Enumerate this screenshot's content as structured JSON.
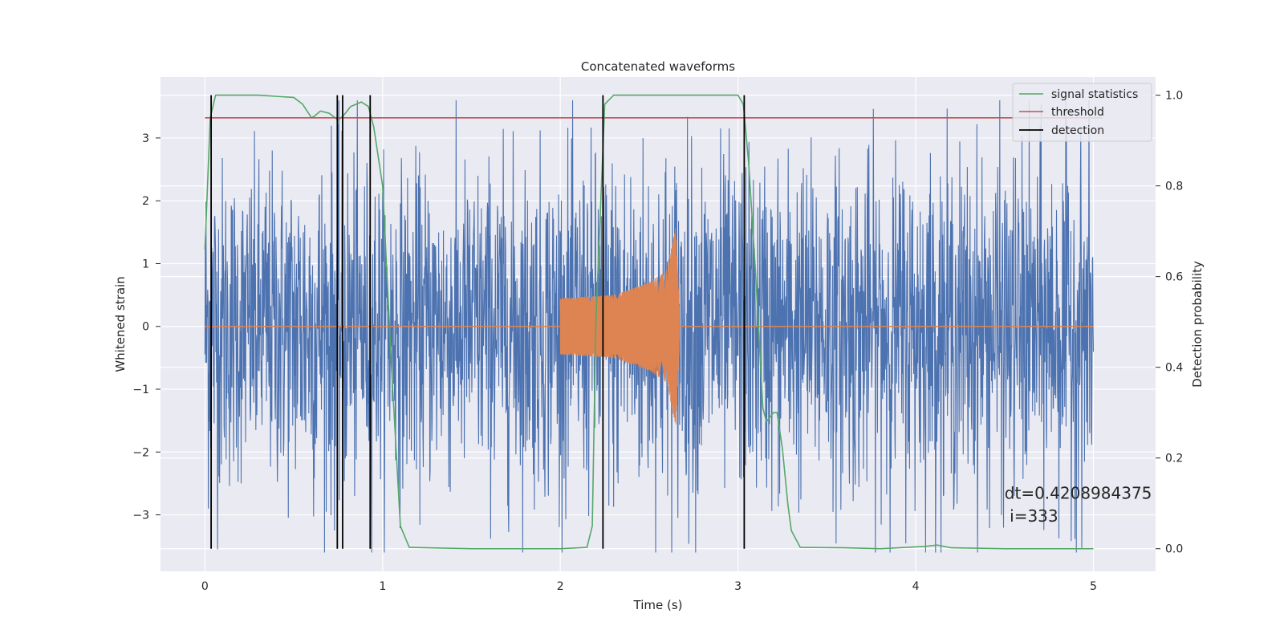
{
  "chart_data": {
    "type": "line",
    "title": "Concatenated waveforms",
    "xlabel": "Time (s)",
    "ylabel": "Whitened strain",
    "y2label": "Detection probability",
    "xlim": [
      -0.25,
      5.35
    ],
    "ylim": [
      -3.9,
      3.97
    ],
    "y2lim": [
      -0.05,
      1.04
    ],
    "xticks": [
      0,
      1,
      2,
      3,
      4,
      5
    ],
    "yticks": [
      -3,
      -2,
      -1,
      0,
      1,
      2,
      3
    ],
    "y2ticks": [
      0.0,
      0.2,
      0.4,
      0.6,
      0.8,
      1.0
    ],
    "xtick_labels": [
      "0",
      "1",
      "2",
      "3",
      "4",
      "5"
    ],
    "ytick_labels": [
      "−3",
      "−2",
      "−1",
      "0",
      "1",
      "2",
      "3"
    ],
    "y2tick_labels": [
      "0.0",
      "0.2",
      "0.4",
      "0.6",
      "0.8",
      "1.0"
    ],
    "grid": true,
    "legend_position": "top-right",
    "series": [
      {
        "name": "",
        "axis": "left",
        "color": "#4c72b0",
        "kind": "noise",
        "x_range": [
          0,
          5
        ],
        "amplitude_envelope": [
          [
            0,
            2.6
          ],
          [
            0.2,
            2.2
          ],
          [
            0.7,
            2.6
          ],
          [
            1.0,
            2.2
          ],
          [
            2.0,
            2.4
          ],
          [
            2.6,
            2.6
          ],
          [
            3.0,
            2.4
          ],
          [
            4.0,
            2.4
          ],
          [
            5.0,
            2.5
          ]
        ]
      },
      {
        "name": "",
        "axis": "left",
        "color": "#dd8452",
        "kind": "chirp",
        "x_range": [
          2.0,
          2.67
        ],
        "amplitude_envelope": [
          [
            2.0,
            0.45
          ],
          [
            2.3,
            0.5
          ],
          [
            2.5,
            0.7
          ],
          [
            2.6,
            0.9
          ],
          [
            2.65,
            1.6
          ],
          [
            2.67,
            0.3
          ]
        ]
      },
      {
        "name": "signal statistics",
        "axis": "right",
        "color": "#55a868",
        "x": [
          0,
          0.03,
          0.06,
          0.1,
          0.15,
          0.3,
          0.5,
          0.55,
          0.6,
          0.62,
          0.65,
          0.7,
          0.75,
          0.78,
          0.82,
          0.88,
          0.92,
          0.95,
          1.0,
          1.05,
          1.1,
          1.15,
          1.5,
          2.0,
          2.15,
          2.18,
          2.2,
          2.25,
          2.3,
          2.4,
          3.0,
          3.03,
          3.06,
          3.1,
          3.14,
          3.16,
          3.2,
          3.22,
          3.25,
          3.28,
          3.3,
          3.35,
          3.6,
          3.8,
          4.05,
          4.12,
          4.2,
          4.5,
          5.0
        ],
        "values": [
          0.66,
          0.95,
          1.0,
          1.0,
          1.0,
          1.0,
          0.995,
          0.98,
          0.95,
          0.955,
          0.965,
          0.96,
          0.945,
          0.955,
          0.975,
          0.985,
          0.975,
          0.93,
          0.8,
          0.4,
          0.05,
          0.003,
          0.0,
          0.0,
          0.003,
          0.05,
          0.5,
          0.98,
          1.0,
          1.0,
          1.0,
          0.98,
          0.85,
          0.6,
          0.31,
          0.28,
          0.3,
          0.3,
          0.22,
          0.1,
          0.04,
          0.003,
          0.002,
          0.0,
          0.005,
          0.008,
          0.002,
          0.0,
          0.0
        ]
      },
      {
        "name": "threshold",
        "axis": "right",
        "color": "#c44e52",
        "x": [
          0,
          5.05
        ],
        "values": [
          0.95,
          0.95
        ]
      }
    ],
    "detection": {
      "name": "detection",
      "color": "#000000",
      "x": [
        0.035,
        0.745,
        0.775,
        0.93,
        2.24,
        3.035
      ],
      "y2_range": [
        0.0,
        1.0
      ]
    },
    "annotation": {
      "line1": "dt=0.4208984375",
      "line2": " i=333",
      "x": 4.5,
      "y2": [
        0.11,
        0.06
      ]
    }
  }
}
